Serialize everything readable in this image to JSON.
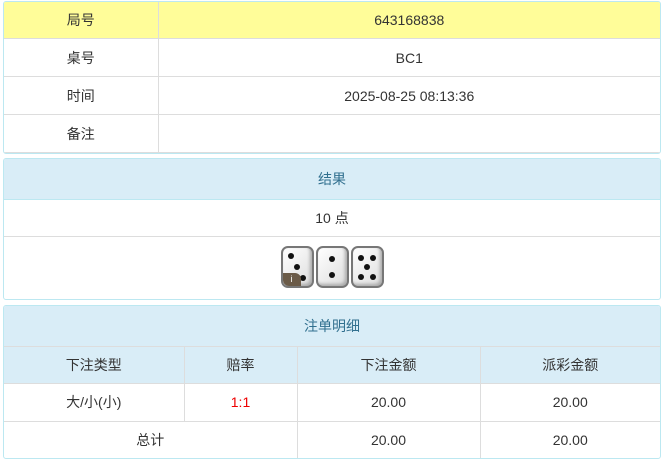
{
  "info": {
    "rows": [
      {
        "label": "局号",
        "value": "643168838"
      },
      {
        "label": "桌号",
        "value": "BC1"
      },
      {
        "label": "时间",
        "value": "2025-08-25 08:13:36"
      },
      {
        "label": "备注",
        "value": ""
      }
    ]
  },
  "result": {
    "title": "结果",
    "points": "10 点",
    "dice": [
      3,
      2,
      5
    ],
    "info_badge": "i"
  },
  "bets": {
    "title": "注单明细",
    "headers": [
      "下注类型",
      "赔率",
      "下注金额",
      "派彩金额"
    ],
    "rows": [
      {
        "type": "大/小(小)",
        "odds": "1:1",
        "amount": "20.00",
        "payout": "20.00"
      }
    ],
    "total": {
      "label": "总计",
      "amount": "20.00",
      "payout": "20.00"
    }
  },
  "colors": {
    "highlight": "#fffd99",
    "header": "#d9edf7",
    "odds": "#ee0000"
  }
}
